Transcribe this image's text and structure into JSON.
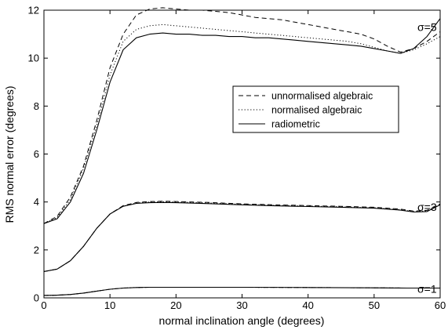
{
  "chart_data": {
    "type": "line",
    "xlabel": "normal inclination angle (degrees)",
    "ylabel": "RMS normal error (degrees)",
    "xlim": [
      0,
      60
    ],
    "ylim": [
      0,
      12
    ],
    "xticks": [
      0,
      10,
      20,
      30,
      40,
      50,
      60
    ],
    "yticks": [
      0,
      2,
      4,
      6,
      8,
      10,
      12
    ],
    "grid": false,
    "legend_position": "center-right",
    "legend": [
      {
        "label": "unnormalised algebraic",
        "style": "dashed"
      },
      {
        "label": "normalised algebraic",
        "style": "dotted"
      },
      {
        "label": "radiometric",
        "style": "solid"
      }
    ],
    "groups": [
      {
        "label": "σ=5",
        "label_y": 11.3,
        "series": [
          {
            "method": "unnormalised algebraic",
            "style": "dashed",
            "x": [
              0,
              2,
              4,
              6,
              8,
              10,
              12,
              14,
              16,
              18,
              20,
              22,
              24,
              26,
              28,
              30,
              32,
              34,
              36,
              38,
              40,
              42,
              44,
              46,
              48,
              50,
              52,
              54,
              56,
              58,
              60
            ],
            "y": [
              3.1,
              3.4,
              4.2,
              5.5,
              7.4,
              9.6,
              11.0,
              11.8,
              12.05,
              12.1,
              12.05,
              12.0,
              12.0,
              11.95,
              11.9,
              11.8,
              11.7,
              11.65,
              11.6,
              11.5,
              11.4,
              11.3,
              11.2,
              11.1,
              11.0,
              10.8,
              10.5,
              10.25,
              10.4,
              10.7,
              11.1
            ]
          },
          {
            "method": "normalised algebraic",
            "style": "dotted",
            "x": [
              0,
              2,
              4,
              6,
              8,
              10,
              12,
              14,
              16,
              18,
              20,
              22,
              24,
              26,
              28,
              30,
              32,
              34,
              36,
              38,
              40,
              42,
              44,
              46,
              48,
              50,
              52,
              54,
              56,
              58,
              60
            ],
            "y": [
              3.1,
              3.35,
              4.1,
              5.4,
              7.2,
              9.3,
              10.7,
              11.2,
              11.35,
              11.4,
              11.35,
              11.3,
              11.25,
              11.2,
              11.15,
              11.1,
              11.05,
              11.0,
              10.95,
              10.9,
              10.85,
              10.8,
              10.75,
              10.7,
              10.6,
              10.45,
              10.3,
              10.2,
              10.35,
              10.6,
              10.9
            ]
          },
          {
            "method": "radiometric",
            "style": "solid",
            "x": [
              0,
              2,
              4,
              6,
              8,
              10,
              12,
              14,
              16,
              18,
              20,
              22,
              24,
              26,
              28,
              30,
              32,
              34,
              36,
              38,
              40,
              42,
              44,
              46,
              48,
              50,
              52,
              54,
              56,
              58,
              60
            ],
            "y": [
              3.1,
              3.3,
              4.0,
              5.2,
              7.0,
              9.0,
              10.35,
              10.85,
              11.0,
              11.05,
              11.0,
              11.0,
              10.95,
              10.95,
              10.9,
              10.9,
              10.85,
              10.85,
              10.8,
              10.75,
              10.7,
              10.65,
              10.6,
              10.55,
              10.5,
              10.4,
              10.3,
              10.2,
              10.4,
              10.9,
              11.65
            ]
          }
        ]
      },
      {
        "label": "σ=3",
        "label_y": 3.8,
        "series": [
          {
            "method": "unnormalised algebraic",
            "style": "dashed",
            "x": [
              0,
              2,
              4,
              6,
              8,
              10,
              12,
              14,
              16,
              18,
              20,
              25,
              30,
              35,
              40,
              45,
              50,
              54,
              56,
              58,
              60
            ],
            "y": [
              1.1,
              1.2,
              1.55,
              2.15,
              2.9,
              3.5,
              3.85,
              3.98,
              4.02,
              4.03,
              4.02,
              3.98,
              3.92,
              3.88,
              3.85,
              3.82,
              3.78,
              3.7,
              3.62,
              3.65,
              3.92
            ]
          },
          {
            "method": "normalised algebraic",
            "style": "dotted",
            "x": [
              0,
              2,
              4,
              6,
              8,
              10,
              12,
              14,
              16,
              18,
              20,
              25,
              30,
              35,
              40,
              45,
              50,
              54,
              56,
              58,
              60
            ],
            "y": [
              1.1,
              1.2,
              1.55,
              2.15,
              2.9,
              3.5,
              3.83,
              3.96,
              4.0,
              4.01,
              4.0,
              3.96,
              3.9,
              3.86,
              3.83,
              3.8,
              3.76,
              3.68,
              3.6,
              3.63,
              3.9
            ]
          },
          {
            "method": "radiometric",
            "style": "solid",
            "x": [
              0,
              2,
              4,
              6,
              8,
              10,
              12,
              14,
              16,
              18,
              20,
              25,
              30,
              35,
              40,
              45,
              50,
              54,
              56,
              58,
              60
            ],
            "y": [
              1.1,
              1.2,
              1.55,
              2.15,
              2.9,
              3.5,
              3.82,
              3.94,
              3.97,
              3.98,
              3.97,
              3.93,
              3.88,
              3.84,
              3.81,
              3.78,
              3.74,
              3.66,
              3.58,
              3.6,
              3.88
            ]
          }
        ]
      },
      {
        "label": "σ=1",
        "label_y": 0.38,
        "series": [
          {
            "method": "unnormalised algebraic",
            "style": "dashed",
            "x": [
              0,
              2,
              4,
              6,
              8,
              10,
              12,
              14,
              16,
              20,
              30,
              40,
              50,
              55,
              60
            ],
            "y": [
              0.1,
              0.11,
              0.14,
              0.2,
              0.28,
              0.36,
              0.41,
              0.43,
              0.44,
              0.44,
              0.44,
              0.43,
              0.42,
              0.41,
              0.41
            ]
          },
          {
            "method": "normalised algebraic",
            "style": "dotted",
            "x": [
              0,
              2,
              4,
              6,
              8,
              10,
              12,
              14,
              16,
              20,
              30,
              40,
              50,
              55,
              60
            ],
            "y": [
              0.1,
              0.11,
              0.14,
              0.2,
              0.28,
              0.36,
              0.41,
              0.43,
              0.44,
              0.44,
              0.44,
              0.43,
              0.42,
              0.41,
              0.41
            ]
          },
          {
            "method": "radiometric",
            "style": "solid",
            "x": [
              0,
              2,
              4,
              6,
              8,
              10,
              12,
              14,
              16,
              20,
              30,
              40,
              50,
              55,
              60
            ],
            "y": [
              0.1,
              0.11,
              0.14,
              0.2,
              0.28,
              0.36,
              0.41,
              0.43,
              0.44,
              0.44,
              0.44,
              0.43,
              0.42,
              0.41,
              0.41
            ]
          }
        ]
      }
    ]
  }
}
